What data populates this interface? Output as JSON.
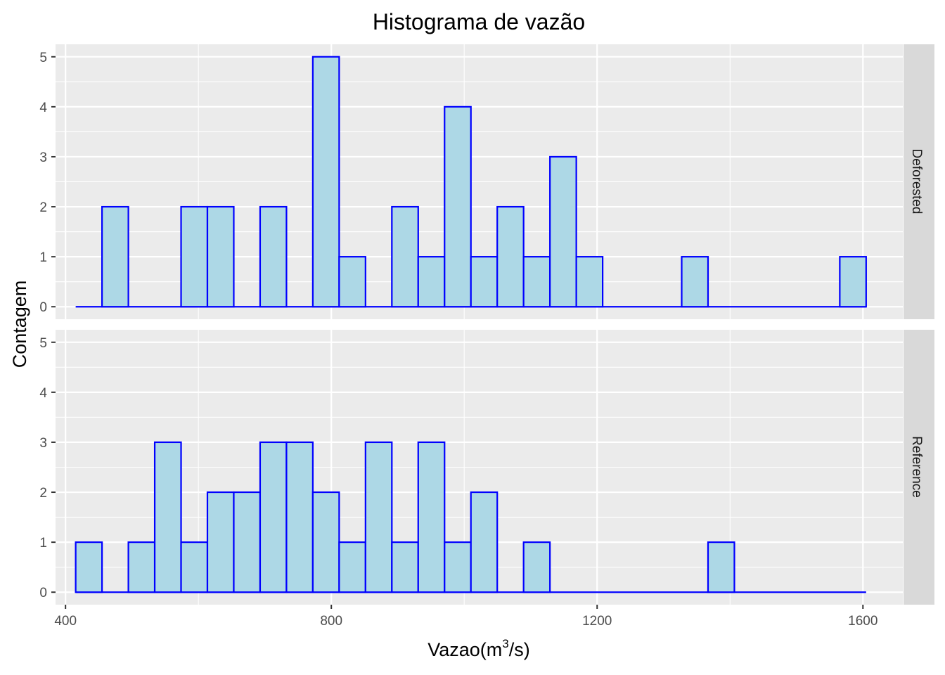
{
  "chart_data": {
    "type": "bar",
    "title": "Histograma de vazão",
    "xlabel_main": "Vazao",
    "xlabel_unit": {
      "open": "(",
      "base": "m",
      "sup": "3",
      "rest": "/s",
      "close": ")"
    },
    "ylabel": "Contagem",
    "xlim": [
      385,
      1660
    ],
    "ylim": [
      -0.25,
      5.25
    ],
    "x_ticks": [
      400,
      800,
      1200,
      1600
    ],
    "x_tick_labels": [
      "400",
      "800",
      "1200",
      "1600"
    ],
    "y_ticks": [
      0,
      1,
      2,
      3,
      4,
      5
    ],
    "y_tick_labels": [
      "0",
      "1",
      "2",
      "3",
      "4",
      "5"
    ],
    "grid": true,
    "bin_width": 39.65,
    "bin_start": 415.3,
    "fill_color": "#add8e6",
    "outline_color": "#0000ff",
    "panel_color": "#ebebeb",
    "strip_color": "#d9d9d9",
    "panels": [
      {
        "label": "Deforested",
        "counts": [
          0,
          2,
          0,
          0,
          2,
          2,
          0,
          2,
          0,
          5,
          1,
          0,
          2,
          1,
          4,
          1,
          2,
          1,
          3,
          1,
          0,
          0,
          0,
          1,
          0,
          0,
          0,
          0,
          0,
          1
        ]
      },
      {
        "label": "Reference",
        "counts": [
          1,
          0,
          1,
          3,
          1,
          2,
          2,
          3,
          3,
          2,
          1,
          3,
          1,
          3,
          1,
          2,
          0,
          1,
          0,
          0,
          0,
          0,
          0,
          0,
          1,
          0,
          0,
          0,
          0,
          0
        ]
      }
    ]
  }
}
